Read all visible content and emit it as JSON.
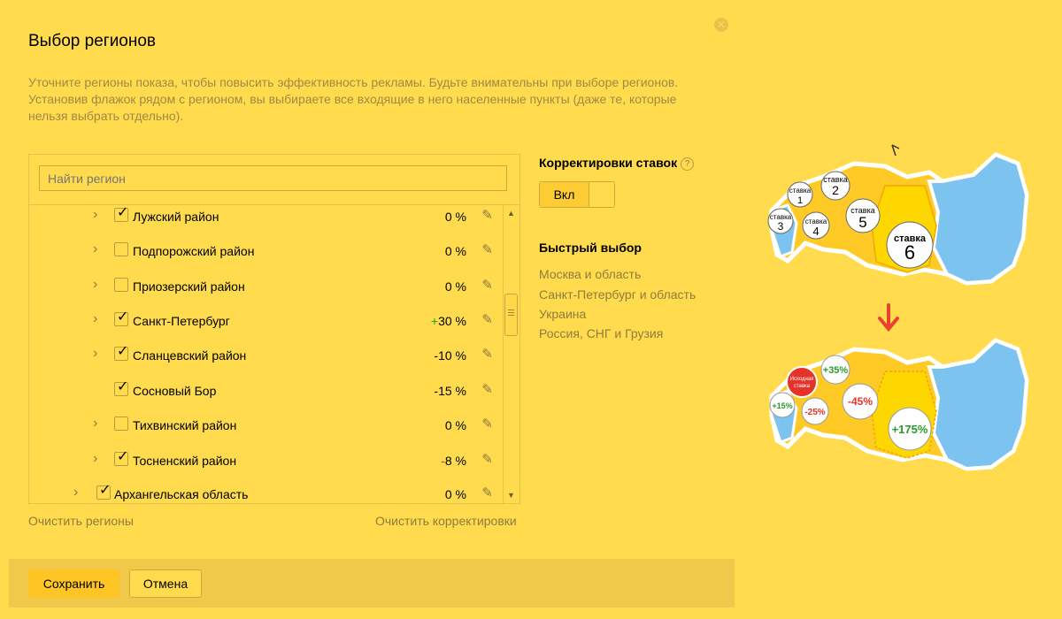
{
  "dialog": {
    "title": "Выбор регионов",
    "description": "Уточните регионы показа, чтобы повысить эффективность рекламы. Будьте внимательны при выборе регионов. Установив флажок рядом с регионом, вы выбираете все входящие в него населенные пункты (даже те, которые нельзя выбрать отдельно)."
  },
  "search": {
    "placeholder": "Найти регион"
  },
  "regions": [
    {
      "label": "Лужский район",
      "checked": true,
      "expandable": true,
      "pct_sign": "",
      "pct_value": "0 %"
    },
    {
      "label": "Подпорожский район",
      "checked": false,
      "expandable": true,
      "pct_sign": "",
      "pct_value": "0 %"
    },
    {
      "label": "Приозерский район",
      "checked": false,
      "expandable": true,
      "pct_sign": "",
      "pct_value": "0 %"
    },
    {
      "label": "Санкт-Петербург",
      "checked": true,
      "expandable": true,
      "pct_sign": "+",
      "pct_value": "30 %"
    },
    {
      "label": "Сланцевский район",
      "checked": true,
      "expandable": true,
      "pct_sign": "",
      "pct_value": "-10 %"
    },
    {
      "label": "Сосновый Бор",
      "checked": true,
      "expandable": false,
      "pct_sign": "",
      "pct_value": "-15 %"
    },
    {
      "label": "Тихвинский район",
      "checked": false,
      "expandable": true,
      "pct_sign": "",
      "pct_value": "0 %"
    },
    {
      "label": "Тосненский район",
      "checked": true,
      "expandable": true,
      "pct_sign": "-",
      "pct_value": "8 %"
    },
    {
      "label": "Архангельская область",
      "checked": true,
      "expandable": true,
      "pct_sign": "",
      "pct_value": "0 %"
    }
  ],
  "actions": {
    "clear_regions": "Очистить регионы",
    "clear_adjustments": "Очистить корректировки"
  },
  "bid_adjustments": {
    "heading": "Корректировки ставок",
    "help": "?",
    "toggle_label": "Вкл",
    "toggle_on": true
  },
  "quick_select": {
    "heading": "Быстрый выбор",
    "items": [
      "Москва и область",
      "Санкт-Петербург и область",
      "Украина",
      "Россия, СНГ и Грузия"
    ]
  },
  "footer": {
    "save": "Сохранить",
    "cancel": "Отмена"
  },
  "illustration": {
    "top_labels": [
      {
        "word": "ставка",
        "num": "1"
      },
      {
        "word": "ставка",
        "num": "2"
      },
      {
        "word": "ставка",
        "num": "3"
      },
      {
        "word": "ставка",
        "num": "4"
      },
      {
        "word": "ставка",
        "num": "5"
      },
      {
        "word": "ставка",
        "num": "6"
      }
    ],
    "bottom_labels": {
      "base_line1": "Исходная",
      "base_line2": "ставка",
      "b1": "+35%",
      "b2": "+15%",
      "b3": "-25%",
      "b4": "-45%",
      "b5": "+175%"
    },
    "colors": {
      "land": "#ffc926",
      "sea_region": "#7dc3ef",
      "outline": "#ffffff",
      "arrow": "#e8412e",
      "base": "#e5332a"
    }
  }
}
